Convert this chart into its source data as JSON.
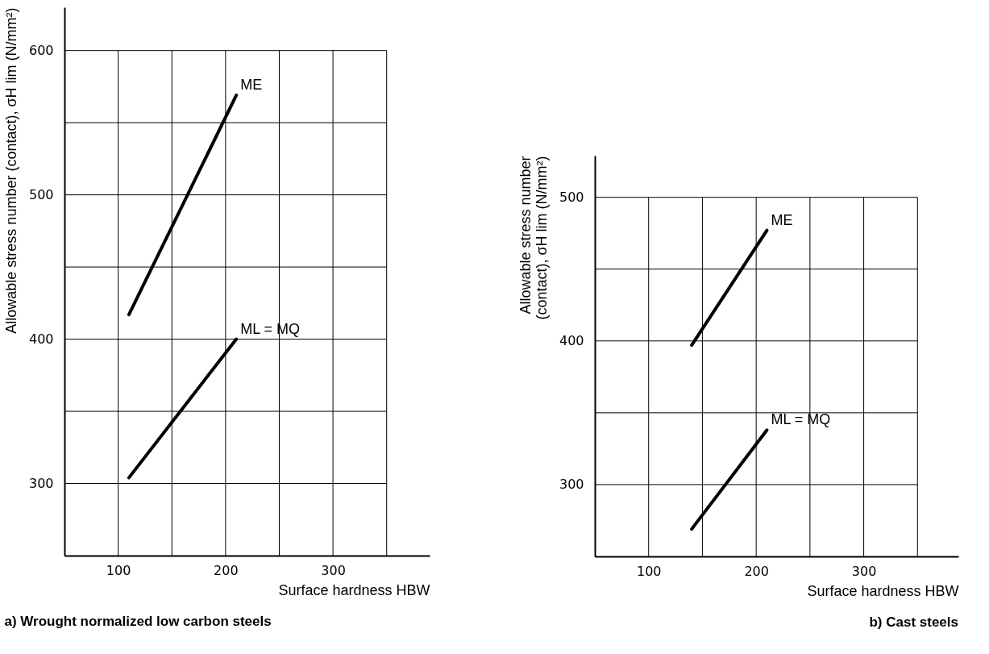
{
  "chart_data": [
    {
      "type": "line",
      "title": "a) Wrought normalized low carbon steels",
      "xlabel": "Surface hardness HBW",
      "ylabel": "Allowable stress number (contact), σH lim (N/mm²)",
      "xlim": [
        50,
        390
      ],
      "ylim": [
        250,
        630
      ],
      "xticks": [
        100,
        {
          "value": 150,
          "label": null
        },
        200,
        {
          "value": 250,
          "label": null
        },
        300,
        {
          "value": 350,
          "label": null
        }
      ],
      "yticks": [
        300,
        {
          "value": 350,
          "label": null
        },
        400,
        {
          "value": 450,
          "label": null
        },
        500,
        {
          "value": 550,
          "label": null
        },
        600
      ],
      "grid": true,
      "series": [
        {
          "name": "ME",
          "color": "#000000",
          "x": [
            110,
            210
          ],
          "values": [
            417,
            569
          ]
        },
        {
          "name": "ML = MQ",
          "color": "#000000",
          "x": [
            110,
            210
          ],
          "values": [
            304,
            400
          ]
        }
      ]
    },
    {
      "type": "line",
      "title": "b) Cast steels",
      "xlabel": "Surface hardness HBW",
      "ylabel": "Allowable stress number\n(contact), σH lim (N/mm²)",
      "xlim": [
        50,
        388
      ],
      "ylim": [
        250,
        529
      ],
      "xticks": [
        100,
        {
          "value": 150,
          "label": null
        },
        200,
        {
          "value": 250,
          "label": null
        },
        300,
        {
          "value": 350,
          "label": null
        }
      ],
      "yticks": [
        300,
        {
          "value": 350,
          "label": null
        },
        400,
        {
          "value": 450,
          "label": null
        },
        500
      ],
      "grid": true,
      "series": [
        {
          "name": "ME",
          "color": "#000000",
          "x": [
            140,
            210
          ],
          "values": [
            397,
            477
          ]
        },
        {
          "name": "ML = MQ",
          "color": "#000000",
          "x": [
            140,
            210
          ],
          "values": [
            269,
            338
          ]
        }
      ]
    }
  ]
}
